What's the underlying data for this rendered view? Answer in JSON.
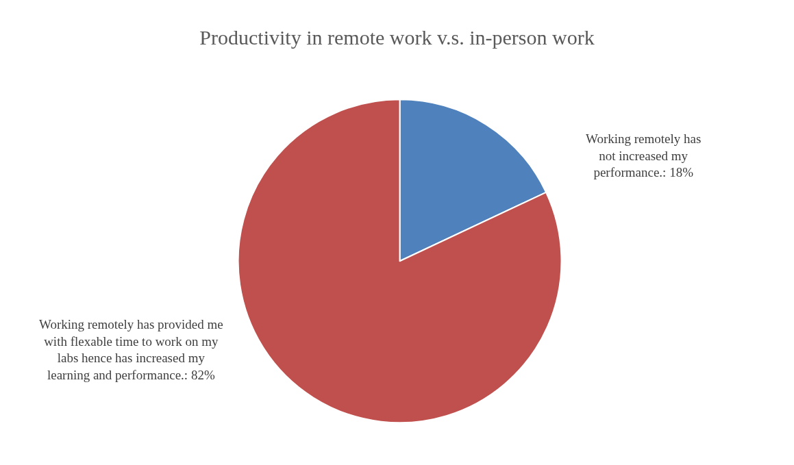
{
  "chart_data": {
    "type": "pie",
    "title": "Productivity in remote work v.s. in-person work",
    "categories": [
      "Working remotely has not increased my performance.",
      "Working remotely has provided me with flexable time to work on my labs hence has increased my learning and performance."
    ],
    "values": [
      18,
      82
    ],
    "value_labels": [
      "18%",
      "82%"
    ],
    "colors": [
      "#4f81bd",
      "#c0504d"
    ],
    "legend": false
  }
}
